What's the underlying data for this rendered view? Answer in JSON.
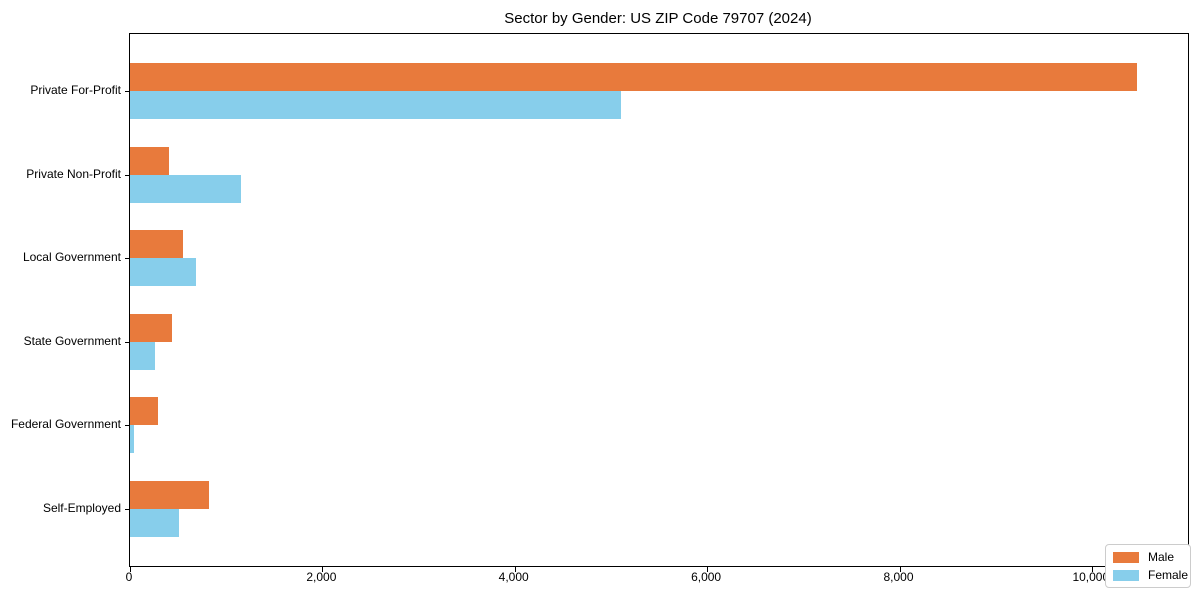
{
  "chart_data": {
    "type": "bar",
    "orientation": "horizontal",
    "title": "Sector by Gender: US ZIP Code 79707 (2024)",
    "xlabel": "",
    "ylabel": "",
    "categories": [
      "Private For-Profit",
      "Private Non-Profit",
      "Local Government",
      "State Government",
      "Federal Government",
      "Self-Employed"
    ],
    "series": [
      {
        "name": "Male",
        "color": "#e87a3c",
        "values": [
          10470,
          410,
          550,
          440,
          290,
          820
        ]
      },
      {
        "name": "Female",
        "color": "#87ceeb",
        "values": [
          5100,
          1150,
          690,
          260,
          45,
          510
        ]
      }
    ],
    "xlim": [
      0,
      11000
    ],
    "xticks": [
      0,
      2000,
      4000,
      6000,
      8000,
      10000
    ],
    "xtick_labels": [
      "0",
      "2,000",
      "4,000",
      "6,000",
      "8,000",
      "10,000"
    ],
    "grid": false,
    "legend_position": "lower right",
    "axis_color": "#000000",
    "legend_border_color": "#cccccc"
  }
}
